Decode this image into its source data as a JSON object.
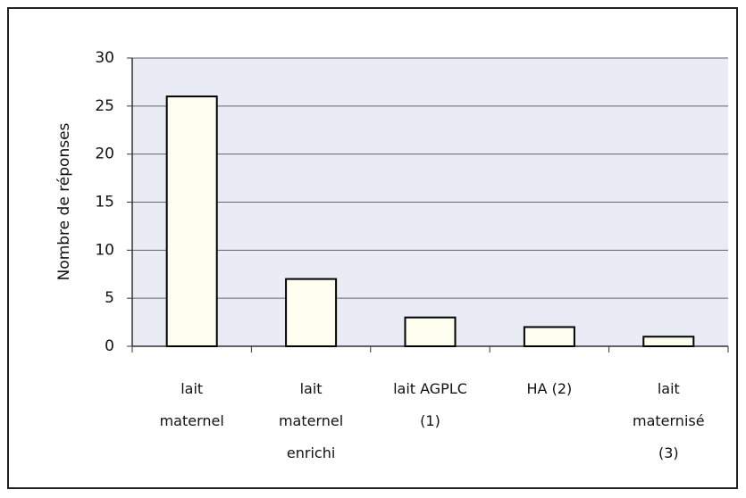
{
  "chart_data": {
    "type": "bar",
    "y_label": "Nombre de réponses",
    "categories": [
      "lait\nmaternel",
      "lait\nmaternel\nenrichi",
      "lait AGPLC\n(1)",
      "HA (2)",
      "lait\nmaternisé\n(3)"
    ],
    "values": [
      26,
      7,
      3,
      2,
      1
    ],
    "color": "#fffff0",
    "ylim": [
      0,
      30
    ],
    "yticks": [
      0,
      5,
      10,
      15,
      20,
      25,
      30
    ],
    "grid": true
  }
}
